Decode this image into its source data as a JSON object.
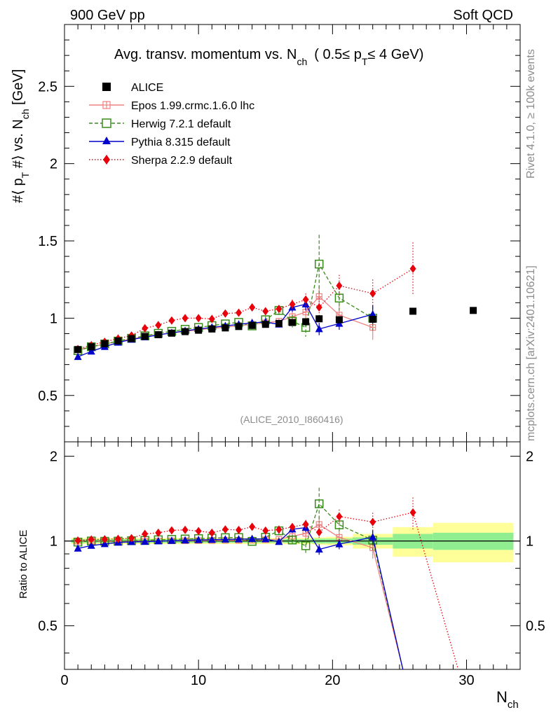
{
  "header": {
    "left": "900 GeV pp",
    "right": "Soft QCD"
  },
  "side_labels": {
    "rivet": "Rivet 4.1.0, ≥ 100k events",
    "mcplots": "mcplots.cern.ch [arXiv:2401.10621]"
  },
  "watermark": "(ALICE_2010_I860416)",
  "chart_data": {
    "type": "scatter",
    "title": {
      "main": "Avg. transv. momentum vs. N",
      "main_sub": "ch",
      "cut_open": "( 0.5≤ p",
      "cut_sub": "T",
      "cut_close": "≤ 4 GeV)"
    },
    "ylabel": {
      "part1": "#⟨ p",
      "sub1": "T",
      "part2": " #⟩ vs. N",
      "sub2": "ch",
      "part3": " [GeV]"
    },
    "ratio_ylabel": "Ratio to ALICE",
    "xlabel": {
      "main": "N",
      "sub": "ch"
    },
    "xlim": [
      0,
      34
    ],
    "ylim": [
      0.2,
      2.9
    ],
    "ratio_ylim": [
      0.35,
      2.25
    ],
    "xticks": [
      0,
      10,
      20,
      30
    ],
    "xtick_labels": [
      "0",
      "10",
      "20",
      "30"
    ],
    "yticks": [
      0.5,
      1,
      1.5,
      2,
      2.5
    ],
    "ytick_labels": [
      "0.5",
      "1",
      "1.5",
      "2",
      "2.5"
    ],
    "ratio_yticks": [
      0.5,
      1,
      2
    ],
    "ratio_ytick_labels": [
      "0.5",
      "1",
      "2"
    ],
    "series": [
      {
        "name": "ALICE",
        "color": "#000000",
        "marker": "square",
        "points": [
          [
            1,
            0.797
          ],
          [
            2,
            0.815
          ],
          [
            3,
            0.835
          ],
          [
            4,
            0.853
          ],
          [
            5,
            0.868
          ],
          [
            6,
            0.882
          ],
          [
            7,
            0.893
          ],
          [
            8,
            0.903
          ],
          [
            9,
            0.913
          ],
          [
            10,
            0.922
          ],
          [
            11,
            0.93
          ],
          [
            12,
            0.937
          ],
          [
            13,
            0.946
          ],
          [
            14,
            0.953
          ],
          [
            15,
            0.96
          ],
          [
            16,
            0.966
          ],
          [
            17,
            0.972
          ],
          [
            18,
            0.977
          ],
          [
            19,
            0.996
          ],
          [
            20.5,
            0.99
          ],
          [
            23,
            0.993
          ],
          [
            26,
            1.045
          ],
          [
            30.5,
            1.05
          ]
        ]
      },
      {
        "name": "Epos 1.99.crmc.1.6.0 lhc",
        "color": "#f08080",
        "marker": "open-cross",
        "line": "solid",
        "points": [
          [
            1,
            0.795
          ],
          [
            2,
            0.814
          ],
          [
            3,
            0.832
          ],
          [
            4,
            0.85
          ],
          [
            5,
            0.866
          ],
          [
            6,
            0.88
          ],
          [
            7,
            0.893
          ],
          [
            8,
            0.904
          ],
          [
            9,
            0.915
          ],
          [
            10,
            0.925
          ],
          [
            11,
            0.934
          ],
          [
            12,
            0.942
          ],
          [
            13,
            0.951
          ],
          [
            14,
            0.96
          ],
          [
            15,
            0.97
          ],
          [
            16,
            0.98
          ],
          [
            17,
            1.01
          ],
          [
            18,
            1.04
          ],
          [
            19,
            1.14
          ],
          [
            20.5,
            1.02
          ],
          [
            23,
            0.94
          ]
        ],
        "errors": [
          0.01,
          0.01,
          0.01,
          0.01,
          0.01,
          0.01,
          0.01,
          0.01,
          0.01,
          0.01,
          0.01,
          0.01,
          0.01,
          0.01,
          0.02,
          0.02,
          0.03,
          0.04,
          0.07,
          0.07,
          0.08
        ]
      },
      {
        "name": "Herwig 7.2.1 default",
        "color": "#3a8c1a",
        "marker": "open-square",
        "line": "dashed",
        "points": [
          [
            1,
            0.79
          ],
          [
            2,
            0.815
          ],
          [
            3,
            0.833
          ],
          [
            4,
            0.852
          ],
          [
            5,
            0.87
          ],
          [
            6,
            0.886
          ],
          [
            7,
            0.902
          ],
          [
            8,
            0.915
          ],
          [
            9,
            0.928
          ],
          [
            10,
            0.94
          ],
          [
            11,
            0.952
          ],
          [
            12,
            0.963
          ],
          [
            13,
            0.973
          ],
          [
            14,
            0.95
          ],
          [
            15,
            0.99
          ],
          [
            16,
            1.05
          ],
          [
            17,
            0.98
          ],
          [
            18,
            0.94
          ],
          [
            19,
            1.35
          ],
          [
            20.5,
            1.13
          ],
          [
            23,
            1.0
          ]
        ],
        "errors": [
          0.01,
          0.01,
          0.01,
          0.01,
          0.01,
          0.01,
          0.01,
          0.01,
          0.01,
          0.01,
          0.01,
          0.01,
          0.01,
          0.02,
          0.02,
          0.03,
          0.04,
          0.06,
          0.19,
          0.08,
          0.08
        ]
      },
      {
        "name": "Pythia 8.315 default",
        "color": "#0000cc",
        "marker": "triangle",
        "line": "solid",
        "points": [
          [
            1,
            0.75
          ],
          [
            2,
            0.785
          ],
          [
            3,
            0.815
          ],
          [
            4,
            0.843
          ],
          [
            5,
            0.862
          ],
          [
            6,
            0.877
          ],
          [
            7,
            0.892
          ],
          [
            8,
            0.905
          ],
          [
            9,
            0.918
          ],
          [
            10,
            0.93
          ],
          [
            11,
            0.94
          ],
          [
            12,
            0.95
          ],
          [
            13,
            0.96
          ],
          [
            14,
            0.97
          ],
          [
            15,
            0.975
          ],
          [
            16,
            0.96
          ],
          [
            17,
            1.07
          ],
          [
            18,
            1.09
          ],
          [
            19,
            0.93
          ],
          [
            20.5,
            0.965
          ],
          [
            23,
            1.025
          ]
        ],
        "errors": [
          0.01,
          0.01,
          0.01,
          0.01,
          0.01,
          0.01,
          0.01,
          0.01,
          0.01,
          0.01,
          0.01,
          0.01,
          0.01,
          0.02,
          0.02,
          0.02,
          0.03,
          0.04,
          0.04,
          0.04,
          0.06
        ]
      },
      {
        "name": "Sherpa 2.2.9 default",
        "color": "#e8000b",
        "marker": "diamond",
        "line": "dotted",
        "points": [
          [
            1,
            0.8
          ],
          [
            2,
            0.825
          ],
          [
            3,
            0.847
          ],
          [
            4,
            0.868
          ],
          [
            5,
            0.888
          ],
          [
            6,
            0.935
          ],
          [
            7,
            0.955
          ],
          [
            8,
            0.985
          ],
          [
            9,
            1.0
          ],
          [
            10,
            1.0
          ],
          [
            11,
            0.995
          ],
          [
            12,
            1.03
          ],
          [
            13,
            1.035
          ],
          [
            14,
            1.07
          ],
          [
            15,
            1.045
          ],
          [
            16,
            1.06
          ],
          [
            17,
            1.09
          ],
          [
            18,
            1.12
          ],
          [
            19,
            1.07
          ],
          [
            20.5,
            1.21
          ],
          [
            23,
            1.16
          ],
          [
            26,
            1.32
          ]
        ],
        "errors": [
          0.01,
          0.01,
          0.01,
          0.01,
          0.01,
          0.01,
          0.01,
          0.01,
          0.01,
          0.01,
          0.01,
          0.01,
          0.01,
          0.02,
          0.02,
          0.02,
          0.03,
          0.04,
          0.06,
          0.07,
          0.09,
          0.17
        ]
      }
    ],
    "ratio_band": {
      "x_edges": [
        0.5,
        1.5,
        2.5,
        3.5,
        4.5,
        5.5,
        6.5,
        7.5,
        8.5,
        9.5,
        10.5,
        11.5,
        12.5,
        13.5,
        14.5,
        15.5,
        16.5,
        17.5,
        18.5,
        19.5,
        21.5,
        24.5,
        27.5,
        33.5
      ],
      "stat_half": [
        0.015,
        0.015,
        0.015,
        0.015,
        0.015,
        0.015,
        0.015,
        0.015,
        0.015,
        0.015,
        0.015,
        0.015,
        0.015,
        0.015,
        0.015,
        0.015,
        0.015,
        0.015,
        0.02,
        0.02,
        0.03,
        0.06,
        0.07
      ],
      "total_half": [
        0.025,
        0.025,
        0.025,
        0.025,
        0.025,
        0.025,
        0.025,
        0.025,
        0.025,
        0.025,
        0.025,
        0.025,
        0.025,
        0.025,
        0.025,
        0.025,
        0.025,
        0.025,
        0.03,
        0.035,
        0.06,
        0.12,
        0.16
      ]
    }
  }
}
